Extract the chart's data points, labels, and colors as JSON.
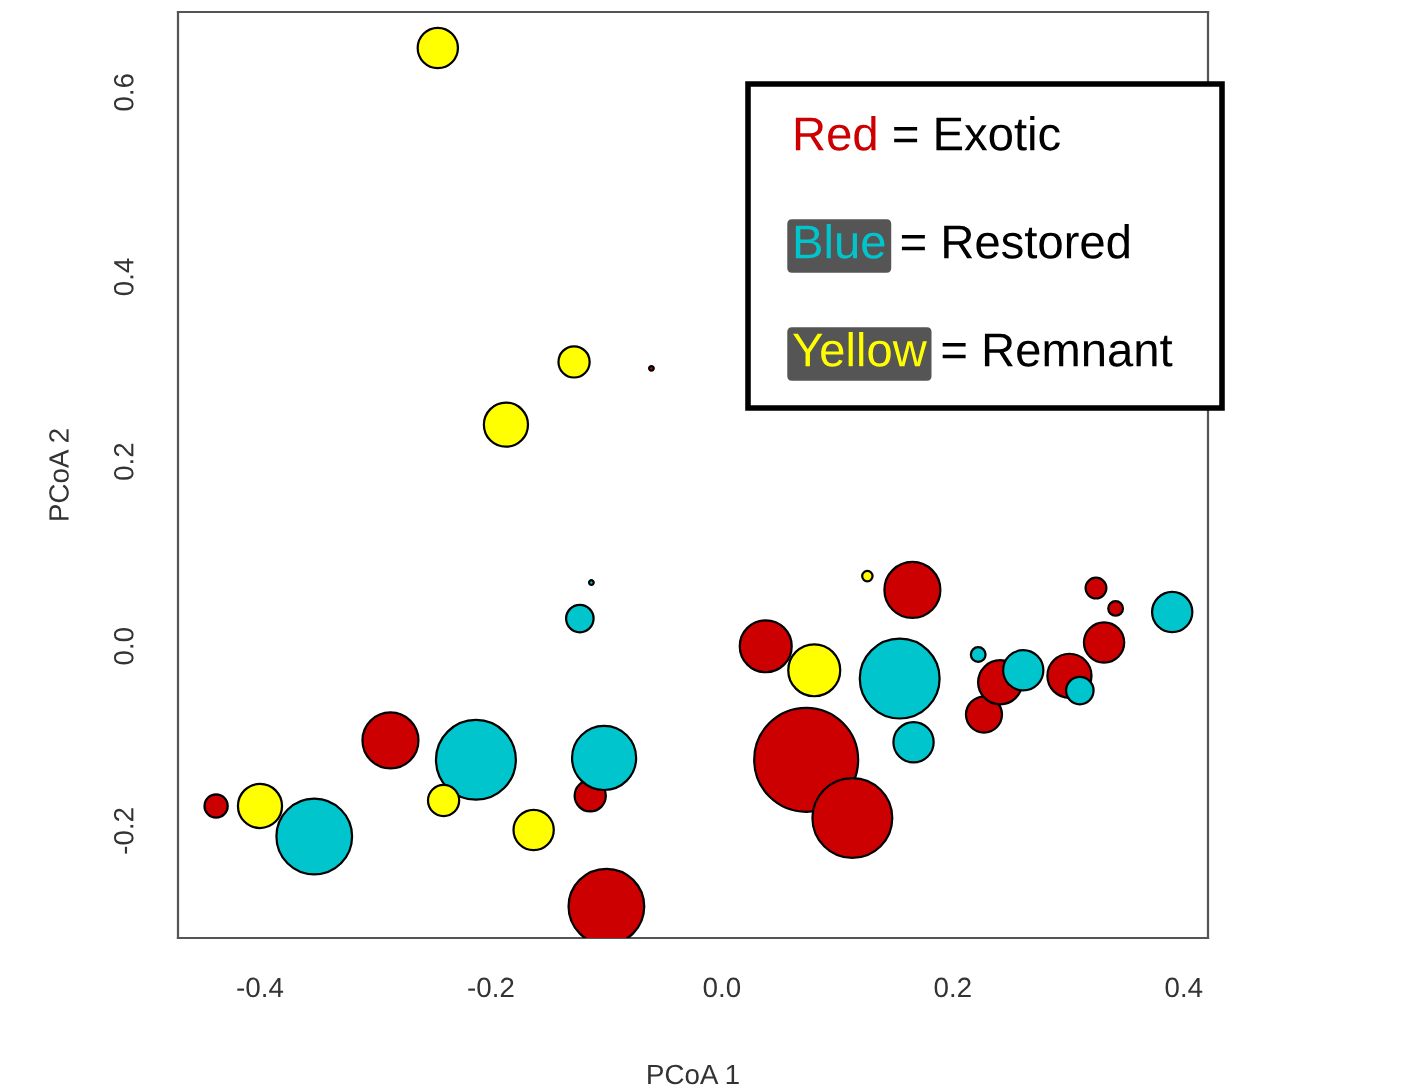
{
  "chart_data": {
    "type": "bubble",
    "xlabel": "PCoA 1",
    "ylabel": "PCoA 2",
    "xlim": [
      -0.471,
      0.421
    ],
    "ylim": [
      -0.316,
      0.687
    ],
    "xticks": [
      {
        "value": -0.4,
        "label": "-0.4"
      },
      {
        "value": -0.2,
        "label": "-0.2"
      },
      {
        "value": 0.0,
        "label": "0.0"
      },
      {
        "value": 0.2,
        "label": "0.2"
      },
      {
        "value": 0.4,
        "label": "0.4"
      }
    ],
    "yticks": [
      {
        "value": -0.2,
        "label": "-0.2"
      },
      {
        "value": 0.0,
        "label": "0.0"
      },
      {
        "value": 0.2,
        "label": "0.2"
      },
      {
        "value": 0.4,
        "label": "0.4"
      },
      {
        "value": 0.6,
        "label": "0.6"
      }
    ],
    "grid": false,
    "annotations": [
      "Red = Exotic",
      "Blue = Restored",
      "Yellow = Remnant"
    ],
    "series": [
      {
        "color": "#cc0000",
        "x": [
          -0.061,
          -0.438,
          -0.287,
          -0.114,
          -0.1,
          0.038,
          0.073,
          0.113,
          0.165,
          0.227,
          0.241,
          0.301,
          0.331,
          0.324,
          0.341
        ],
        "values": [
          0.301,
          -0.173,
          -0.102,
          -0.162,
          -0.282,
          0.0,
          -0.123,
          -0.186,
          0.061,
          -0.074,
          -0.039,
          -0.032,
          0.004,
          0.063,
          0.041
        ],
        "sizes": [
          0.002,
          0.05,
          0.29,
          0.09,
          0.53,
          0.25,
          1.0,
          0.59,
          0.29,
          0.12,
          0.18,
          0.18,
          0.15,
          0.04,
          0.02
        ]
      },
      {
        "color": "#00c5cd",
        "x": [
          -0.113,
          -0.123,
          -0.353,
          -0.213,
          -0.102,
          0.154,
          0.166,
          0.222,
          0.261,
          0.31,
          0.39
        ],
        "values": [
          0.069,
          0.03,
          -0.206,
          -0.123,
          -0.121,
          -0.035,
          -0.104,
          -0.009,
          -0.026,
          -0.048,
          0.037
        ],
        "sizes": [
          0.002,
          0.07,
          0.53,
          0.59,
          0.38,
          0.59,
          0.15,
          0.02,
          0.15,
          0.07,
          0.15
        ]
      },
      {
        "color": "#ffff00",
        "x": [
          -0.246,
          -0.128,
          -0.187,
          0.08,
          0.126,
          -0.4,
          -0.241,
          -0.163
        ],
        "values": [
          0.648,
          0.308,
          0.24,
          -0.026,
          0.076,
          -0.173,
          -0.167,
          -0.199
        ],
        "sizes": [
          0.15,
          0.09,
          0.18,
          0.25,
          0.01,
          0.18,
          0.09,
          0.15
        ]
      }
    ]
  }
}
